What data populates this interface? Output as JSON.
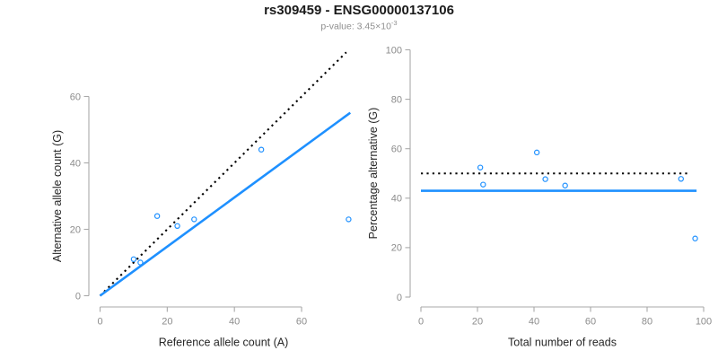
{
  "header": {
    "title": "rs309459 - ENSG00000137106",
    "pvalue_label": "p-value: 3.45×10",
    "pvalue_exponent": "-3"
  },
  "colors": {
    "accent_blue": "#1E90FF",
    "reference_black": "#000000",
    "tick_gray": "#8c8c8c",
    "axis_gray": "#a9a9a9",
    "subtitle_gray": "#8f8f8f"
  },
  "chart_data": [
    {
      "type": "scatter",
      "xlabel": "Reference allele count (A)",
      "ylabel": "Alternative allele count (G)",
      "xlim": [
        0,
        75
      ],
      "ylim": [
        0,
        75
      ],
      "xticks": [
        0,
        20,
        40,
        60
      ],
      "yticks": [
        0,
        20,
        40,
        60
      ],
      "grid": false,
      "legend": "none",
      "points": [
        [
          10,
          11
        ],
        [
          12,
          10
        ],
        [
          17,
          24
        ],
        [
          23,
          21
        ],
        [
          28,
          23
        ],
        [
          48,
          44
        ],
        [
          74,
          23
        ]
      ],
      "lines": [
        {
          "name": "identity-line",
          "style": "dotted",
          "color": "#000000",
          "from": [
            0,
            0
          ],
          "to": [
            73.3,
            73.3
          ]
        },
        {
          "name": "fitted-line",
          "style": "solid",
          "color": "#1E90FF",
          "from": [
            0,
            0
          ],
          "to": [
            74.5,
            55.1
          ]
        }
      ]
    },
    {
      "type": "scatter",
      "xlabel": "Total number of reads",
      "ylabel": "Percentage alternative (G)",
      "xlim": [
        0,
        100
      ],
      "ylim": [
        0,
        100
      ],
      "xticks": [
        0,
        20,
        40,
        60,
        80,
        100
      ],
      "yticks": [
        0,
        20,
        40,
        60,
        80,
        100
      ],
      "grid": false,
      "legend": "none",
      "points": [
        [
          21,
          52.4
        ],
        [
          22,
          45.5
        ],
        [
          41,
          58.5
        ],
        [
          44,
          47.7
        ],
        [
          51,
          45.1
        ],
        [
          92,
          47.8
        ],
        [
          97,
          23.7
        ]
      ],
      "lines": [
        {
          "name": "balanced-50-percent-line",
          "style": "dotted",
          "color": "#000000",
          "from": [
            0,
            50
          ],
          "to": [
            95,
            50
          ]
        },
        {
          "name": "fitted-percentage-line",
          "style": "solid",
          "color": "#1E90FF",
          "from": [
            0,
            43
          ],
          "to": [
            97.5,
            43
          ]
        }
      ]
    }
  ]
}
